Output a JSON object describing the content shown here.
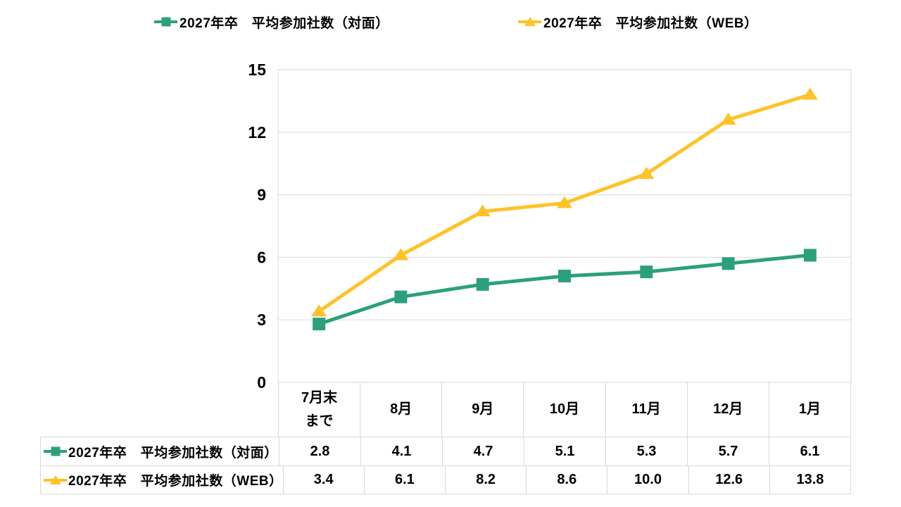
{
  "colors": {
    "background": "#FFFFFF",
    "grid": "#D9D9D9",
    "text": "#000000"
  },
  "chart_data": {
    "type": "line",
    "title": "",
    "categories": [
      "7月末\nまで",
      "8月",
      "9月",
      "10月",
      "11月",
      "12月",
      "1月"
    ],
    "series": [
      {
        "id": "in-person",
        "name": "2027年卒　平均参加社数（対面）",
        "marker": "square",
        "color": "#2CA07D",
        "values": [
          2.8,
          4.1,
          4.7,
          5.1,
          5.3,
          5.7,
          6.1
        ]
      },
      {
        "id": "web",
        "name": "2027年卒　平均参加社数（WEB）",
        "marker": "triangle",
        "color": "#FFC328",
        "values": [
          3.4,
          6.1,
          8.2,
          8.6,
          10.0,
          12.6,
          13.8
        ]
      }
    ],
    "ylim": [
      0,
      15
    ],
    "yticks": [
      0,
      3,
      6,
      9,
      12,
      15
    ],
    "grid": true,
    "legend_position": "top",
    "data_table_shown": true,
    "value_format": "one_decimal"
  }
}
